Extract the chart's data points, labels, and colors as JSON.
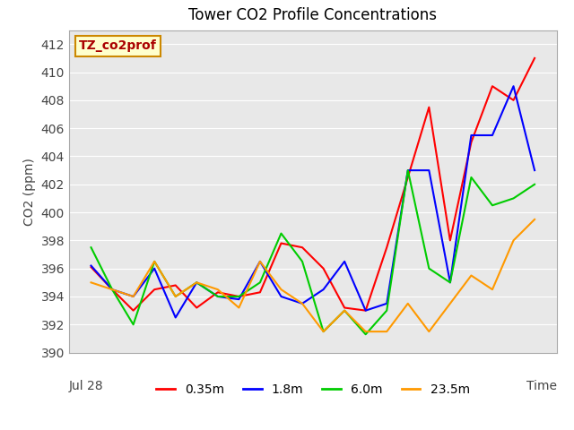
{
  "title": "Tower CO2 Profile Concentrations",
  "ylabel": "CO2 (ppm)",
  "xlabel": "Time",
  "xlabel_left": "Jul 28",
  "ylim": [
    390,
    413
  ],
  "yticks": [
    390,
    392,
    394,
    396,
    398,
    400,
    402,
    404,
    406,
    408,
    410,
    412
  ],
  "legend_label": "TZ_co2prof",
  "legend_box_color": "#ffffcc",
  "legend_box_edge": "#cc8800",
  "legend_text_color": "#aa0000",
  "fig_bg_color": "#ffffff",
  "plot_bg_color": "#e8e8e8",
  "grid_color": "#ffffff",
  "series": {
    "0.35m": {
      "color": "#ff0000",
      "values": [
        396.1,
        394.5,
        393.0,
        394.5,
        394.8,
        393.2,
        394.3,
        394.0,
        394.3,
        397.8,
        397.5,
        396.0,
        393.2,
        393.0,
        397.5,
        402.5,
        407.5,
        398.0,
        405.0,
        409.0,
        408.0,
        411.0
      ]
    },
    "1.8m": {
      "color": "#0000ff",
      "values": [
        396.2,
        394.5,
        394.0,
        396.0,
        392.5,
        395.0,
        394.0,
        393.8,
        396.5,
        394.0,
        393.5,
        394.5,
        396.5,
        393.0,
        393.5,
        403.0,
        403.0,
        395.0,
        405.5,
        405.5,
        409.0,
        403.0
      ]
    },
    "6.0m": {
      "color": "#00cc00",
      "values": [
        397.5,
        394.5,
        392.0,
        396.5,
        394.0,
        395.0,
        394.0,
        394.0,
        395.0,
        398.5,
        396.5,
        391.5,
        393.0,
        391.3,
        393.0,
        403.0,
        396.0,
        395.0,
        402.5,
        400.5,
        401.0,
        402.0
      ]
    },
    "23.5m": {
      "color": "#ff9900",
      "values": [
        395.0,
        394.5,
        394.0,
        396.5,
        394.0,
        395.0,
        394.5,
        393.2,
        396.5,
        394.5,
        393.5,
        391.5,
        393.0,
        391.5,
        391.5,
        393.5,
        391.5,
        393.5,
        395.5,
        394.5,
        398.0,
        399.5
      ]
    }
  },
  "spine_color": "#aaaaaa",
  "tick_label_color": "#444444",
  "title_fontsize": 12,
  "ylabel_fontsize": 10,
  "tick_fontsize": 10
}
